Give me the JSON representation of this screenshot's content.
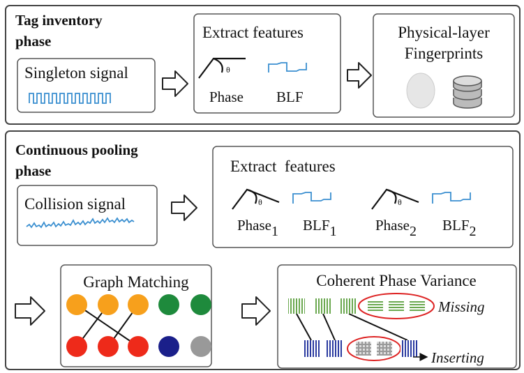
{
  "tag_inventory": {
    "title_lines": [
      "Tag inventory",
      "phase"
    ],
    "singleton": "Singleton signal",
    "extract": {
      "title": "Extract features",
      "phase": "Phase",
      "blf": "BLF",
      "angle": "θ"
    },
    "fingerprints": [
      "Physical-layer",
      "Fingerprints"
    ]
  },
  "continuous_pooling": {
    "title_lines": [
      "Continuous pooling",
      "phase"
    ],
    "collision": "Collision signal",
    "extract": {
      "title": "Extract  features",
      "angle": "θ",
      "labels": [
        {
          "text": "Phase",
          "sub": "1"
        },
        {
          "text": "BLF",
          "sub": "1"
        },
        {
          "text": "Phase",
          "sub": "2"
        },
        {
          "text": "BLF",
          "sub": "2"
        }
      ]
    },
    "graph_matching": "Graph Matching",
    "coherent": {
      "title": "Coherent Phase Variance",
      "missing": "Missing",
      "inserting": "Inserting"
    }
  }
}
